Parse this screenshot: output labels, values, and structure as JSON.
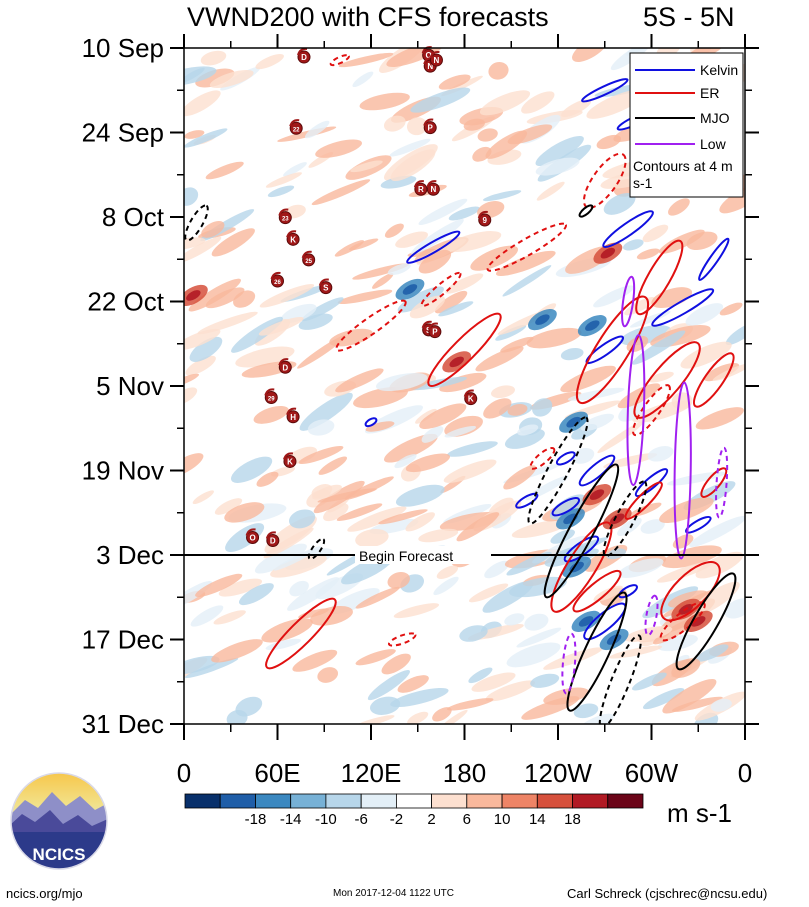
{
  "chart_data": {
    "type": "heatmap",
    "title": "VWND200 with CFS forecasts",
    "region": "5S - 5N",
    "x_ticks": [
      "0",
      "60E",
      "120E",
      "180",
      "120W",
      "60W",
      "0"
    ],
    "x_tick_values": [
      0,
      60,
      120,
      180,
      240,
      300,
      360
    ],
    "xlim": [
      0,
      360
    ],
    "y_ticks": [
      "10 Sep",
      "24 Sep",
      "8 Oct",
      "22 Oct",
      "5 Nov",
      "19 Nov",
      "3 Dec",
      "17 Dec",
      "31 Dec"
    ],
    "y_tick_days": [
      0,
      14,
      28,
      42,
      56,
      70,
      84,
      98,
      112
    ],
    "ylim_days": [
      0,
      112
    ],
    "forecast_start_day": 84,
    "forecast_label": "Begin Forecast",
    "legend": [
      {
        "name": "Kelvin",
        "color": "#1010e0"
      },
      {
        "name": "ER",
        "color": "#e01010"
      },
      {
        "name": "MJO",
        "color": "#000000"
      },
      {
        "name": "Low",
        "color": "#a020f0"
      }
    ],
    "contour_note": "Contours at 4 m s-1",
    "colorbar": {
      "levels": [
        "-18",
        "-14",
        "-10",
        "-6",
        "-2",
        "2",
        "6",
        "10",
        "14",
        "18"
      ],
      "colors": [
        "#08306b",
        "#1f5ea8",
        "#3b88c0",
        "#77b1d6",
        "#b7d6ea",
        "#e3eff7",
        "#ffffff",
        "#fde0d0",
        "#f9b89c",
        "#ee8466",
        "#d6503c",
        "#b11a24",
        "#6b0418"
      ],
      "units": "m s-1"
    },
    "storm_markers": [
      {
        "label": "D",
        "lon": 77,
        "day": 1.5
      },
      {
        "label": "O",
        "lon": 157,
        "day": 1.2
      },
      {
        "label": "N",
        "lon": 158,
        "day": 3.0
      },
      {
        "label": "N",
        "lon": 162,
        "day": 2.0
      },
      {
        "label": "22",
        "lon": 72,
        "day": 13.3
      },
      {
        "label": "P",
        "lon": 158,
        "day": 13.2
      },
      {
        "label": "R",
        "lon": 152,
        "day": 23.4
      },
      {
        "label": "N",
        "lon": 160,
        "day": 23.4
      },
      {
        "label": "23",
        "lon": 65,
        "day": 28.1
      },
      {
        "label": "9",
        "lon": 193,
        "day": 28.5
      },
      {
        "label": "K",
        "lon": 70,
        "day": 31.7
      },
      {
        "label": "25",
        "lon": 80,
        "day": 35.1
      },
      {
        "label": "26",
        "lon": 60,
        "day": 38.6
      },
      {
        "label": "S",
        "lon": 91,
        "day": 39.7
      },
      {
        "label": "S",
        "lon": 157,
        "day": 46.7
      },
      {
        "label": "P",
        "lon": 161,
        "day": 47.0
      },
      {
        "label": "D",
        "lon": 65,
        "day": 52.9
      },
      {
        "label": "29",
        "lon": 56,
        "day": 57.9
      },
      {
        "label": "H",
        "lon": 70,
        "day": 61.1
      },
      {
        "label": "K",
        "lon": 184,
        "day": 58.1
      },
      {
        "label": "K",
        "lon": 68,
        "day": 68.5
      },
      {
        "label": "O",
        "lon": 44,
        "day": 81.1
      },
      {
        "label": "D",
        "lon": 57,
        "day": 81.6
      }
    ]
  },
  "logo": {
    "text": "NCICS"
  },
  "footer": {
    "left": "ncics.org/mjo",
    "center": "Mon 2017-12-04 1122 UTC",
    "right": "Carl Schreck (cjschrec@ncsu.edu)"
  }
}
